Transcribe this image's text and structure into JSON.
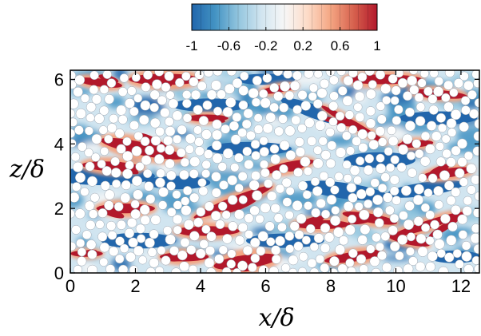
{
  "chart_data": {
    "type": "heatmap",
    "title": "",
    "xlabel": "x/δ",
    "ylabel": "z/δ",
    "xlim": [
      0,
      12.566
    ],
    "ylim": [
      0,
      6.283
    ],
    "xticks": [
      0,
      2,
      4,
      6,
      8,
      10,
      12
    ],
    "yticks": [
      0,
      2,
      4,
      6
    ],
    "colorbar": {
      "range": [
        -1,
        1
      ],
      "levels": 20,
      "tick_labels": [
        "-1",
        "-0.6",
        "-0.2",
        "0.2",
        "0.6",
        "1"
      ],
      "colormap": [
        "#2166ac",
        "#4393c3",
        "#92c5de",
        "#d1e5f0",
        "#f7f7f7",
        "#fddbc7",
        "#f4a582",
        "#d6604d",
        "#b2182b"
      ],
      "placement": "top"
    },
    "particles": "white circular obstacles distributed over the domain",
    "streaks": [
      {
        "sign": "positive",
        "x": 2.9,
        "z": 6.0,
        "angle": 0,
        "length": 2.2,
        "width": 0.35
      },
      {
        "sign": "positive",
        "x": 0.9,
        "z": 5.9,
        "angle": -8,
        "length": 1.4,
        "width": 0.25
      },
      {
        "sign": "positive",
        "x": 6.4,
        "z": 5.7,
        "angle": 10,
        "length": 1.2,
        "width": 0.22
      },
      {
        "sign": "positive",
        "x": 9.6,
        "z": 6.0,
        "angle": 0,
        "length": 2.4,
        "width": 0.3
      },
      {
        "sign": "positive",
        "x": 11.3,
        "z": 5.55,
        "angle": -5,
        "length": 1.8,
        "width": 0.25
      },
      {
        "sign": "positive",
        "x": 8.7,
        "z": 4.6,
        "angle": -30,
        "length": 2.3,
        "width": 0.22
      },
      {
        "sign": "positive",
        "x": 10.6,
        "z": 4.0,
        "angle": 4,
        "length": 1.1,
        "width": 0.22
      },
      {
        "sign": "positive",
        "x": 2.2,
        "z": 3.85,
        "angle": -12,
        "length": 2.6,
        "width": 0.4
      },
      {
        "sign": "positive",
        "x": 1.3,
        "z": 3.3,
        "angle": -3,
        "length": 1.9,
        "width": 0.3
      },
      {
        "sign": "positive",
        "x": 6.7,
        "z": 3.3,
        "angle": 12,
        "length": 1.6,
        "width": 0.28
      },
      {
        "sign": "positive",
        "x": 4.2,
        "z": 4.8,
        "angle": 0,
        "length": 1.3,
        "width": 0.22
      },
      {
        "sign": "positive",
        "x": 11.6,
        "z": 3.1,
        "angle": 8,
        "length": 1.6,
        "width": 0.28
      },
      {
        "sign": "positive",
        "x": 5.0,
        "z": 2.2,
        "angle": 22,
        "length": 2.6,
        "width": 0.3
      },
      {
        "sign": "positive",
        "x": 1.7,
        "z": 2.0,
        "angle": 0,
        "length": 1.8,
        "width": 0.3
      },
      {
        "sign": "positive",
        "x": 7.7,
        "z": 1.5,
        "angle": 0,
        "length": 1.8,
        "width": 0.28
      },
      {
        "sign": "positive",
        "x": 9.2,
        "z": 1.7,
        "angle": -10,
        "length": 1.7,
        "width": 0.28
      },
      {
        "sign": "positive",
        "x": 11.0,
        "z": 1.5,
        "angle": 18,
        "length": 2.4,
        "width": 0.26
      },
      {
        "sign": "positive",
        "x": 4.2,
        "z": 1.3,
        "angle": 0,
        "length": 2.0,
        "width": 0.3
      },
      {
        "sign": "positive",
        "x": 3.5,
        "z": 0.5,
        "angle": 0,
        "length": 1.5,
        "width": 0.28
      },
      {
        "sign": "positive",
        "x": 5.4,
        "z": 0.35,
        "angle": 8,
        "length": 2.0,
        "width": 0.42
      },
      {
        "sign": "positive",
        "x": 8.7,
        "z": 0.5,
        "angle": 8,
        "length": 1.8,
        "width": 0.3
      },
      {
        "sign": "positive",
        "x": 10.4,
        "z": 1.0,
        "angle": -12,
        "length": 1.3,
        "width": 0.24
      },
      {
        "sign": "positive",
        "x": 0.5,
        "z": 0.6,
        "angle": 0,
        "length": 1.0,
        "width": 0.2
      },
      {
        "sign": "negative",
        "x": 1.0,
        "z": 3.0,
        "angle": 0,
        "length": 3.2,
        "width": 0.4
      },
      {
        "sign": "negative",
        "x": 5.5,
        "z": 3.85,
        "angle": 0,
        "length": 2.6,
        "width": 0.3
      },
      {
        "sign": "negative",
        "x": 8.4,
        "z": 2.55,
        "angle": -8,
        "length": 2.8,
        "width": 0.35
      },
      {
        "sign": "negative",
        "x": 4.3,
        "z": 5.2,
        "angle": 0,
        "length": 2.4,
        "width": 0.3
      },
      {
        "sign": "negative",
        "x": 7.5,
        "z": 5.0,
        "angle": -20,
        "length": 2.2,
        "width": 0.3
      },
      {
        "sign": "negative",
        "x": 2.1,
        "z": 1.0,
        "angle": 0,
        "length": 2.3,
        "width": 0.35
      },
      {
        "sign": "negative",
        "x": 6.6,
        "z": 1.0,
        "angle": 0,
        "length": 2.4,
        "width": 0.32
      },
      {
        "sign": "negative",
        "x": 10.9,
        "z": 2.6,
        "angle": 8,
        "length": 2.4,
        "width": 0.3
      },
      {
        "sign": "negative",
        "x": 11.3,
        "z": 4.8,
        "angle": 0,
        "length": 2.4,
        "width": 0.3
      },
      {
        "sign": "negative",
        "x": 9.5,
        "z": 3.5,
        "angle": 0,
        "length": 2.2,
        "width": 0.35
      },
      {
        "sign": "negative",
        "x": 3.3,
        "z": 2.8,
        "angle": 0,
        "length": 2.0,
        "width": 0.3
      },
      {
        "sign": "negative",
        "x": 11.8,
        "z": 0.5,
        "angle": 0,
        "length": 1.6,
        "width": 0.28
      },
      {
        "sign": "negative",
        "x": 6.0,
        "z": 6.0,
        "angle": 0,
        "length": 1.8,
        "width": 0.25
      }
    ]
  }
}
